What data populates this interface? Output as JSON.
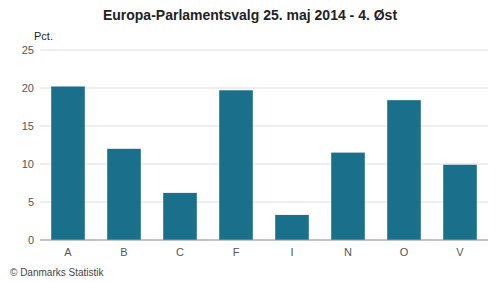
{
  "chart_data": {
    "type": "bar",
    "title": "Europa-Parlamentsvalg 25. maj 2014 - 4. Øst",
    "categories": [
      "A",
      "B",
      "C",
      "F",
      "I",
      "N",
      "O",
      "V"
    ],
    "values": [
      20.2,
      12.0,
      6.2,
      19.7,
      3.3,
      11.5,
      18.4,
      9.9
    ],
    "color": "#1a6f8a",
    "ylabel": "Pct.",
    "ylim": [
      0,
      25
    ],
    "yticks": [
      0,
      5,
      10,
      15,
      20,
      25
    ],
    "grid": true,
    "footer": "© Danmarks Statistik"
  }
}
